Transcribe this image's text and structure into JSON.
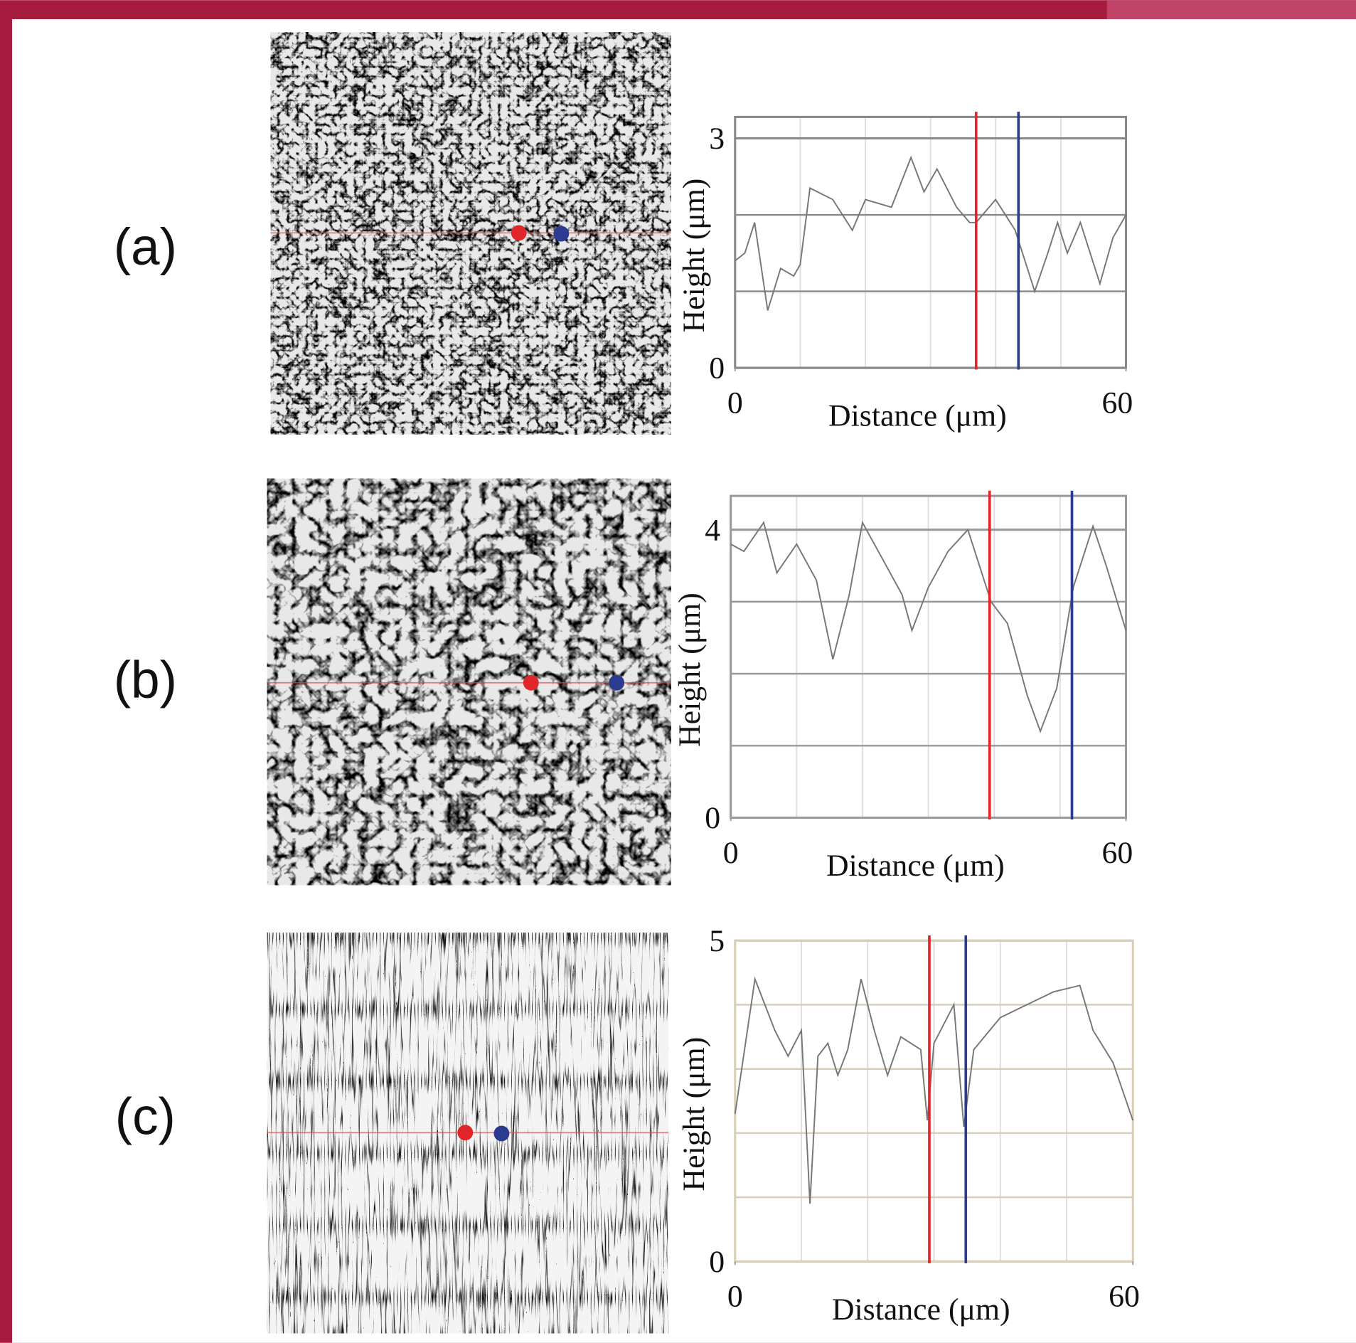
{
  "panel_labels": [
    "(a)",
    "(b)",
    "(c)"
  ],
  "chart_data": [
    {
      "type": "line",
      "xlabel": "Distance (μm)",
      "ylabel": "Height (μm)",
      "x": [
        0,
        1.5,
        3,
        5,
        7,
        9,
        10,
        11.5,
        15,
        18,
        20,
        24,
        27,
        29,
        31,
        34,
        36,
        37,
        40,
        43,
        46,
        48,
        49.5,
        51,
        53,
        56,
        58,
        60
      ],
      "values": [
        1.4,
        1.5,
        1.9,
        0.75,
        1.3,
        1.2,
        1.35,
        2.35,
        2.2,
        1.8,
        2.2,
        2.1,
        2.75,
        2.3,
        2.6,
        2.1,
        1.9,
        1.9,
        2.2,
        1.8,
        1.0,
        1.5,
        1.9,
        1.5,
        1.9,
        1.1,
        1.7,
        2.0
      ],
      "line_color": "#777777",
      "xlim": [
        0,
        60
      ],
      "ylim": [
        0,
        3.28
      ],
      "xticks": [
        0,
        60
      ],
      "yticks": [
        0,
        3
      ],
      "xgrid": [
        10,
        20,
        30,
        40,
        50
      ],
      "ygrid": [
        1,
        2
      ],
      "grid_color": "#888888",
      "cursors": [
        {
          "x": 37,
          "color": "#e0262b"
        },
        {
          "x": 43.5,
          "color": "#2b3b8f"
        }
      ]
    },
    {
      "type": "line",
      "xlabel": "Distance (μm)",
      "ylabel": "Height (μm)",
      "x": [
        0,
        2,
        5,
        7,
        10,
        13,
        15.5,
        18,
        20,
        23,
        26,
        27.5,
        30,
        33,
        36,
        39.5,
        42,
        45,
        47,
        49.5,
        52,
        55,
        57,
        59,
        60
      ],
      "values": [
        3.8,
        3.7,
        4.1,
        3.4,
        3.8,
        3.3,
        2.2,
        3.1,
        4.1,
        3.6,
        3.1,
        2.6,
        3.2,
        3.7,
        4.0,
        3.0,
        2.7,
        1.7,
        1.2,
        1.8,
        3.2,
        4.05,
        3.5,
        2.9,
        2.6
      ],
      "line_color": "#777777",
      "xlim": [
        0,
        60
      ],
      "ylim": [
        0,
        4.47
      ],
      "xticks": [
        0,
        60
      ],
      "yticks": [
        0,
        4
      ],
      "xgrid": [
        10,
        20,
        30,
        40,
        50
      ],
      "ygrid": [
        1,
        2,
        3
      ],
      "grid_color": "#999999",
      "cursors": [
        {
          "x": 39.3,
          "color": "#e0262b"
        },
        {
          "x": 51.8,
          "color": "#2b3b8f"
        }
      ]
    },
    {
      "type": "line",
      "xlabel": "Distance (μm)",
      "ylabel": "Height (μm)",
      "x": [
        0,
        3,
        6,
        8,
        10,
        11.3,
        12.5,
        14,
        15.5,
        17,
        19,
        21,
        23,
        25,
        28,
        29,
        30,
        33,
        34.5,
        36,
        40,
        44,
        48,
        52,
        54,
        57,
        59,
        60
      ],
      "values": [
        2.3,
        4.4,
        3.6,
        3.2,
        3.6,
        0.9,
        3.2,
        3.4,
        2.9,
        3.3,
        4.4,
        3.6,
        2.9,
        3.5,
        3.3,
        2.2,
        3.4,
        4.0,
        2.1,
        3.3,
        3.8,
        4.0,
        4.2,
        4.3,
        3.6,
        3.1,
        2.5,
        2.2
      ],
      "line_color": "#777777",
      "xlim": [
        0,
        60
      ],
      "ylim": [
        0,
        5
      ],
      "xticks": [
        0,
        60
      ],
      "yticks": [
        0,
        5
      ],
      "xgrid": [
        10,
        20,
        30,
        40,
        50
      ],
      "ygrid": [
        1,
        2,
        3,
        4
      ],
      "grid_color": "#d8cdb8",
      "cursors": [
        {
          "x": 29.3,
          "color": "#e0262b"
        },
        {
          "x": 34.8,
          "color": "#2b3b8f"
        }
      ]
    }
  ]
}
